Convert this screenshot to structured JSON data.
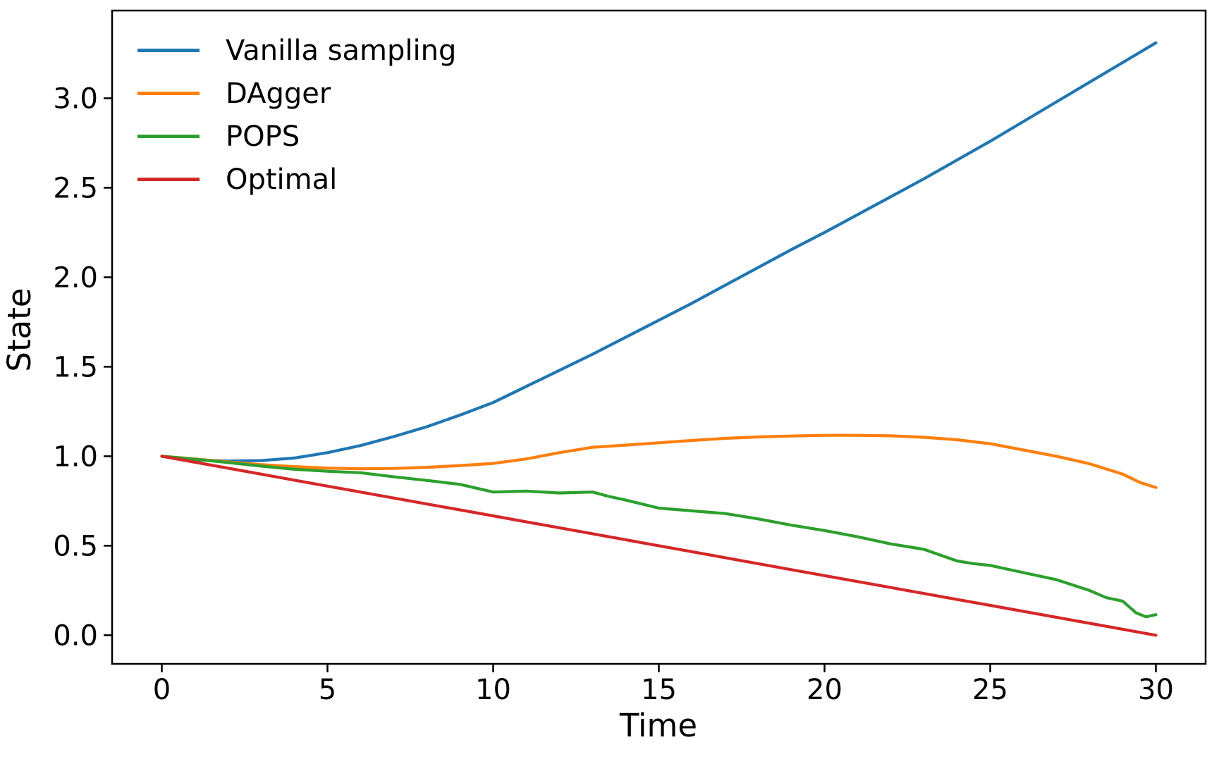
{
  "figure": {
    "background": "#ffffff",
    "text_color": "#000000",
    "spine_color": "#000000"
  },
  "chart_data": {
    "type": "line",
    "title": "",
    "xlabel": "Time",
    "ylabel": "State",
    "xlim": [
      -1.5,
      31.5
    ],
    "ylim": [
      -0.16,
      3.49
    ],
    "grid": false,
    "legend_position": "upper-left",
    "legend_frame": false,
    "x_ticks": {
      "values": [
        0,
        5,
        10,
        15,
        20,
        25,
        30
      ],
      "labels": [
        "0",
        "5",
        "10",
        "15",
        "20",
        "25",
        "30"
      ]
    },
    "y_ticks": {
      "values": [
        0.0,
        0.5,
        1.0,
        1.5,
        2.0,
        2.5,
        3.0
      ],
      "labels": [
        "0.0",
        "0.5",
        "1.0",
        "1.5",
        "2.0",
        "2.5",
        "3.0"
      ]
    },
    "series": [
      {
        "name": "Vanilla sampling",
        "color": "#1f77b4",
        "x": [
          0,
          1,
          2,
          3,
          4,
          5,
          6,
          7,
          8,
          9,
          10,
          11,
          12,
          13,
          14,
          15,
          16,
          17,
          18,
          19,
          20,
          21,
          22,
          23,
          24,
          25,
          26,
          27,
          28,
          29,
          30
        ],
        "y": [
          1.0,
          0.98,
          0.973,
          0.976,
          0.99,
          1.02,
          1.06,
          1.11,
          1.165,
          1.23,
          1.3,
          1.39,
          1.48,
          1.57,
          1.665,
          1.76,
          1.855,
          1.955,
          2.055,
          2.155,
          2.25,
          2.35,
          2.45,
          2.55,
          2.655,
          2.76,
          2.87,
          2.98,
          3.09,
          3.2,
          3.31
        ]
      },
      {
        "name": "DAgger",
        "color": "#ff7f0e",
        "x": [
          0,
          1,
          2,
          3,
          4,
          5,
          6,
          7,
          8,
          9,
          10,
          11,
          12,
          13,
          14,
          15,
          16,
          17,
          18,
          19,
          20,
          21,
          22,
          23,
          24,
          25,
          26,
          27,
          28,
          29,
          29.5,
          30
        ],
        "y": [
          1.0,
          0.985,
          0.968,
          0.953,
          0.942,
          0.934,
          0.93,
          0.932,
          0.938,
          0.948,
          0.96,
          0.985,
          1.02,
          1.05,
          1.062,
          1.075,
          1.088,
          1.1,
          1.108,
          1.113,
          1.117,
          1.117,
          1.114,
          1.106,
          1.092,
          1.07,
          1.035,
          1.0,
          0.958,
          0.9,
          0.855,
          0.825
        ]
      },
      {
        "name": "POPS",
        "color": "#2ca02c",
        "x": [
          0,
          1,
          2,
          3,
          4,
          5,
          6,
          7,
          8,
          9,
          10,
          11,
          12,
          13,
          13.5,
          14,
          15,
          16,
          17,
          18,
          19,
          20,
          21,
          22,
          23,
          24,
          24.5,
          25,
          26,
          27,
          28,
          28.5,
          29,
          29.4,
          29.7,
          30
        ],
        "y": [
          1.0,
          0.983,
          0.965,
          0.945,
          0.927,
          0.916,
          0.908,
          0.885,
          0.865,
          0.843,
          0.8,
          0.805,
          0.795,
          0.8,
          0.775,
          0.755,
          0.71,
          0.695,
          0.68,
          0.65,
          0.615,
          0.585,
          0.55,
          0.51,
          0.48,
          0.415,
          0.4,
          0.39,
          0.35,
          0.31,
          0.25,
          0.21,
          0.19,
          0.125,
          0.103,
          0.115
        ]
      },
      {
        "name": "Optimal",
        "color": "#d62728",
        "x": [
          0,
          5,
          10,
          15,
          20,
          25,
          30
        ],
        "y": [
          1.0,
          0.833,
          0.667,
          0.5,
          0.333,
          0.167,
          0.0
        ]
      }
    ]
  }
}
